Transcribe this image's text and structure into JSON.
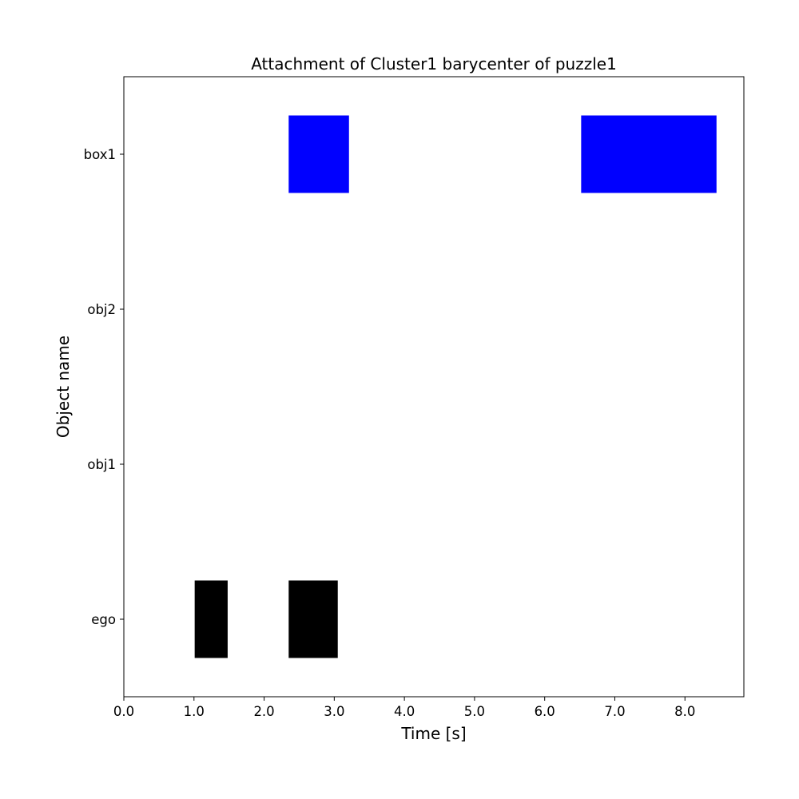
{
  "chart_data": {
    "type": "timeline",
    "title": "Attachment of Cluster1 barycenter of puzzle1",
    "xlabel": "Time [s]",
    "ylabel": "Object name",
    "xlim": [
      0.0,
      8.84
    ],
    "x_ticks": [
      0.0,
      1.0,
      2.0,
      3.0,
      4.0,
      5.0,
      6.0,
      7.0,
      8.0
    ],
    "x_tick_labels": [
      "0.0",
      "1.0",
      "2.0",
      "3.0",
      "4.0",
      "5.0",
      "6.0",
      "7.0",
      "8.0"
    ],
    "categories": [
      "ego",
      "obj1",
      "obj2",
      "box1"
    ],
    "grid": false,
    "intervals": [
      {
        "object": "ego",
        "start": 1.01,
        "end": 1.48,
        "color": "#000000"
      },
      {
        "object": "ego",
        "start": 2.35,
        "end": 3.05,
        "color": "#000000"
      },
      {
        "object": "box1",
        "start": 2.35,
        "end": 3.21,
        "color": "#0000ff"
      },
      {
        "object": "box1",
        "start": 6.52,
        "end": 8.45,
        "color": "#0000ff"
      }
    ]
  }
}
